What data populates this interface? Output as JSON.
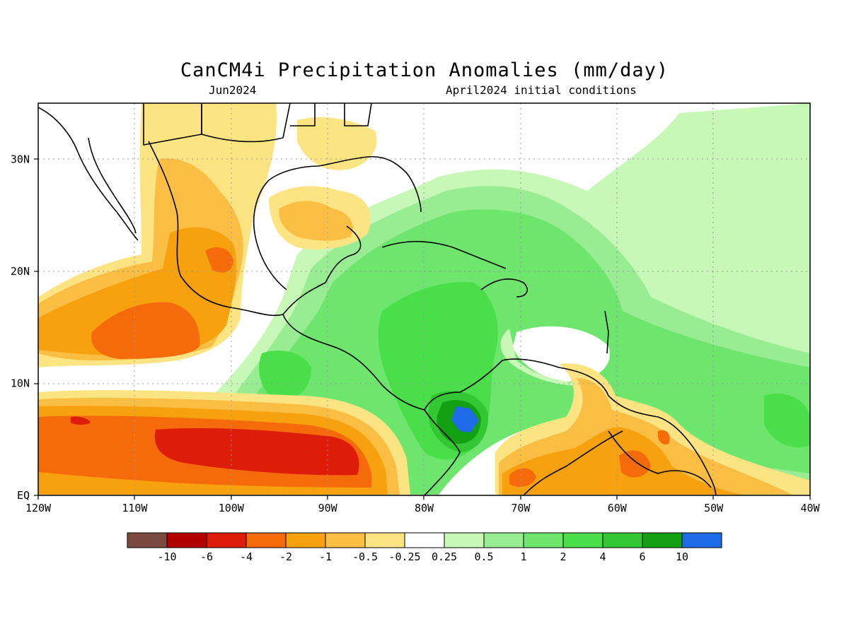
{
  "header": {
    "title": "CanCM4i Precipitation Anomalies (mm/day)",
    "valid_month": "Jun2024",
    "init_note": "April2024 initial conditions"
  },
  "map": {
    "lon_range": [
      -120,
      -40
    ],
    "lat_range": [
      0,
      35
    ],
    "x_ticks": [
      "120W",
      "110W",
      "100W",
      "90W",
      "80W",
      "70W",
      "60W",
      "50W",
      "40W"
    ],
    "y_ticks": [
      "EQ",
      "10N",
      "20N",
      "30N"
    ],
    "grid": true
  },
  "legend": {
    "colors": [
      "#7a4a41",
      "#b30000",
      "#dd1d0a",
      "#f56a0a",
      "#f7a10f",
      "#fbbe45",
      "#fde482",
      "#ffffff",
      "#c8f8b8",
      "#98ec92",
      "#6ee66e",
      "#4ade4a",
      "#33c833",
      "#13a013",
      "#1e6ce8"
    ],
    "labels": [
      "-10",
      "-6",
      "-4",
      "-2",
      "-1",
      "-0.5",
      "-0.25",
      "0.25",
      "0.5",
      "1",
      "2",
      "4",
      "6",
      "10"
    ]
  }
}
